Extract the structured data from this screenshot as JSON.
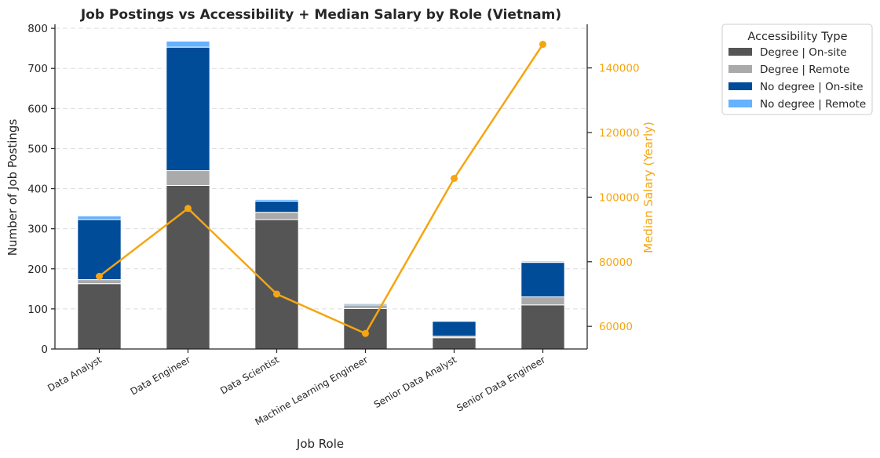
{
  "chart_data": {
    "type": "bar",
    "stacked": true,
    "title": "Job Postings vs Accessibility + Median Salary by Role (Vietnam)",
    "xlabel": "Job Role",
    "ylabel": "Number of Job Postings",
    "y2label": "Median Salary (Yearly)",
    "ylim": [
      0,
      810
    ],
    "y2lim": [
      53000,
      153500
    ],
    "yticks": [
      0,
      100,
      200,
      300,
      400,
      500,
      600,
      700,
      800
    ],
    "y2ticks": [
      60000,
      80000,
      100000,
      120000,
      140000
    ],
    "grid": "horizontal dashed",
    "categories": [
      "Data Analyst",
      "Data Engineer",
      "Data Scientist",
      "Machine Learning Engineer",
      "Senior Data Analyst",
      "Senior Data Engineer"
    ],
    "series": [
      {
        "name": "Degree | On-site",
        "color": "#555555",
        "values": [
          163,
          408,
          323,
          101,
          28,
          110
        ]
      },
      {
        "name": "Degree | Remote",
        "color": "#aaaaaa",
        "values": [
          10,
          37,
          18,
          9,
          4,
          20
        ]
      },
      {
        "name": "No degree | On-site",
        "color": "#004c99",
        "values": [
          150,
          308,
          28,
          3,
          37,
          86
        ]
      },
      {
        "name": "No degree | Remote",
        "color": "#66b2ff",
        "values": [
          9,
          15,
          4,
          2,
          0,
          3
        ]
      }
    ],
    "line": {
      "name": "Median Salary",
      "color": "#f5a511",
      "axis": "right",
      "values": [
        75500,
        96500,
        70000,
        57800,
        105800,
        147300
      ]
    },
    "legend": {
      "title": "Accessibility Type",
      "placement": "outside top-right"
    }
  }
}
